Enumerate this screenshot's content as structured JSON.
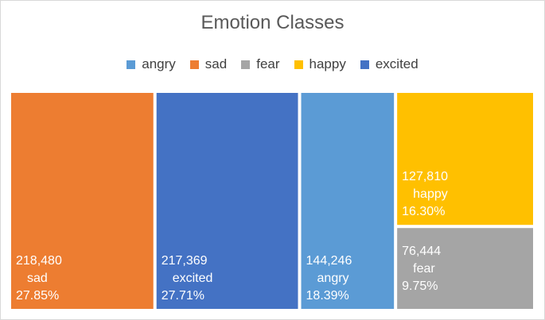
{
  "chart_data": {
    "type": "treemap",
    "title": "Emotion Classes",
    "legend_position": "top",
    "legend": [
      {
        "name": "angry",
        "color": "#5b9bd5"
      },
      {
        "name": "sad",
        "color": "#ed7d31"
      },
      {
        "name": "fear",
        "color": "#a5a5a5"
      },
      {
        "name": "happy",
        "color": "#ffc000"
      },
      {
        "name": "excited",
        "color": "#4472c4"
      }
    ],
    "items": [
      {
        "name": "sad",
        "value": 218480,
        "value_label": "218,480",
        "percent_label": "27.85%",
        "color": "#ed7d31"
      },
      {
        "name": "excited",
        "value": 217369,
        "value_label": "217,369",
        "percent_label": "27.71%",
        "color": "#4472c4"
      },
      {
        "name": "angry",
        "value": 144246,
        "value_label": "144,246",
        "percent_label": "18.39%",
        "color": "#5b9bd5"
      },
      {
        "name": "happy",
        "value": 127810,
        "value_label": "127,810",
        "percent_label": "16.30%",
        "color": "#ffc000"
      },
      {
        "name": "fear",
        "value": 76444,
        "value_label": "76,444",
        "percent_label": "9.75%",
        "color": "#a5a5a5"
      }
    ]
  }
}
